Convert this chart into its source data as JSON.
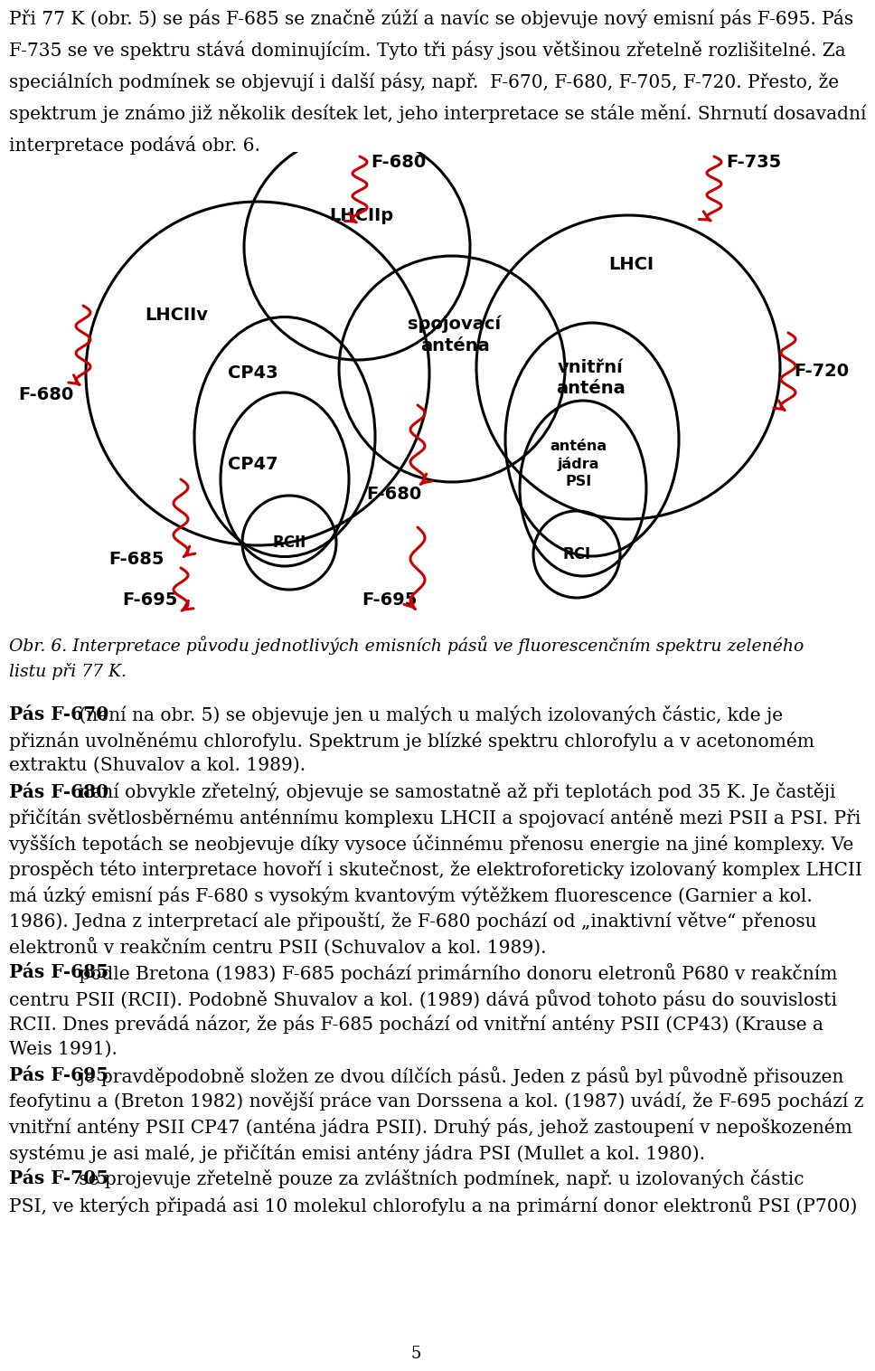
{
  "bg_color": "#ffffff",
  "red": "#cc0000",
  "black": "#000000",
  "header_lines": [
    "Při 77 K (obr. 5) se pás F-685 se značně zúží a navíc se objevuje nový emisní pás F-695. Pás",
    "F-735 se ve spektru stává dominujícím. Tyto tři pásy jsou většinou zřetelně rozlišitelné. Za",
    "speciálních podmínek se objevují i další pásy, např.  F-670, F-680, F-705, F-720. Přesto, že",
    "spektrum je známo již několik desítek let, jeho interpretace se stále mění. Shrnutí dosavadní",
    "interpretace podává obr. 6."
  ],
  "caption_line1": "Obr. 6. Interpretace původu jednotlivých emisních pásů ve fluorescenčním spektru zeleného",
  "caption_line2": "listu při 77 K.",
  "body_rows": [
    {
      "bold": "Pás F-670",
      "normal": " (není na obr. 5) se objevuje jen u malých u malých izolovaných částic, kde je"
    },
    {
      "bold": "",
      "normal": "přiznán uvolněnému chlorofylu. Spektrum je blízké spektru chlorofylu a v acetonomém"
    },
    {
      "bold": "",
      "normal": "extraktu (Shuvalov a kol. 1989)."
    },
    {
      "bold": "Pás F-680",
      "normal": " není obvykle zřetelný, objevuje se samostatně až při teplotách pod 35 K. Je častěji"
    },
    {
      "bold": "",
      "normal": "přičítán světlosběrnému anténnímu komplexu LHCII a spojovací anténě mezi PSII a PSI. Při"
    },
    {
      "bold": "",
      "normal": "vyšších tepotách se neobjevuje díky vysoce účinnému přenosu energie na jiné komplexy. Ve"
    },
    {
      "bold": "",
      "normal": "prospěch této interpretace hovoří i skutečnost, že elektroforeticky izolovaný komplex LHCII"
    },
    {
      "bold": "",
      "normal": "má úzký emisní pás F-680 s vysokým kvantovým výtěžkem fluorescence (Garnier a kol."
    },
    {
      "bold": "",
      "normal": "1986). Jedna z interpretací ale připouští, že F-680 pochází od „inaktivní větve“ přenosu"
    },
    {
      "bold": "",
      "normal": "elektronů v reakčním centru PSII (Schuvalov a kol. 1989)."
    },
    {
      "bold": "Pás F-685",
      "normal": " podle Bretona (1983) F-685 pochází primárního donoru eletronů P680 v reakčním"
    },
    {
      "bold": "",
      "normal": "centru PSII (RCII). Podobně Shuvalov a kol. (1989) dává původ tohoto pásu do souvislosti"
    },
    {
      "bold": "",
      "normal": "RCII. Dnes prevádá názor, že pás F-685 pochází od vnitřní antény PSII (CP43) (Krause a"
    },
    {
      "bold": "",
      "normal": "Weis 1991)."
    },
    {
      "bold": "Pás F-695",
      "normal": " je pravděpodobně složen ze dvou dílčích pásů. Jeden z pásů byl původně přisouzen"
    },
    {
      "bold": "",
      "normal": "feofytinu a (Breton 1982) novější práce van Dorssena a kol. (1987) uvádí, že F-695 pochází z"
    },
    {
      "bold": "",
      "normal": "vnitřní antény PSII CP47 (anténa jádra PSII). Druhý pás, jehož zastoupení v nepoškozeném"
    },
    {
      "bold": "",
      "normal": "systému je asi malé, je přičítán emisi antény jádra PSI (Mullet a kol. 1980)."
    },
    {
      "bold": "Pás F-705",
      "normal": " se projevuje zřetelně pouze za zvláštních podmínek, např. u izolovaných částic"
    },
    {
      "bold": "",
      "normal": "PSI, ve kterých připadá asi 10 molekul chlorofylu a na primární donor elektronů PSI (P700)"
    }
  ],
  "page_num": "5",
  "header_fontsize": 14.5,
  "body_fontsize": 14.5,
  "caption_fontsize": 13.5,
  "label_fontsize": 14.0,
  "flabel_fontsize": 14.0
}
